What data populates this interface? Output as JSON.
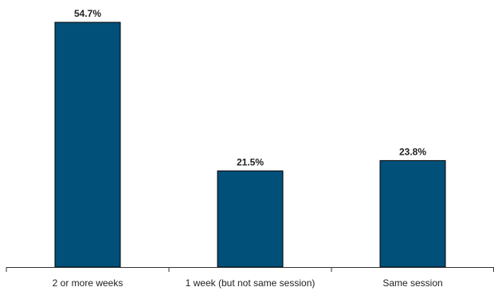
{
  "chart_data": {
    "type": "bar",
    "categories": [
      "2 or more weeks",
      "1 week (but not same session)",
      "Same session"
    ],
    "values": [
      54.7,
      21.5,
      23.8
    ],
    "data_labels": [
      "54.7%",
      "21.5%",
      "23.8%"
    ],
    "ylim": [
      0,
      56
    ],
    "grid": false,
    "legend": "none",
    "bar_color": "#00507a"
  }
}
